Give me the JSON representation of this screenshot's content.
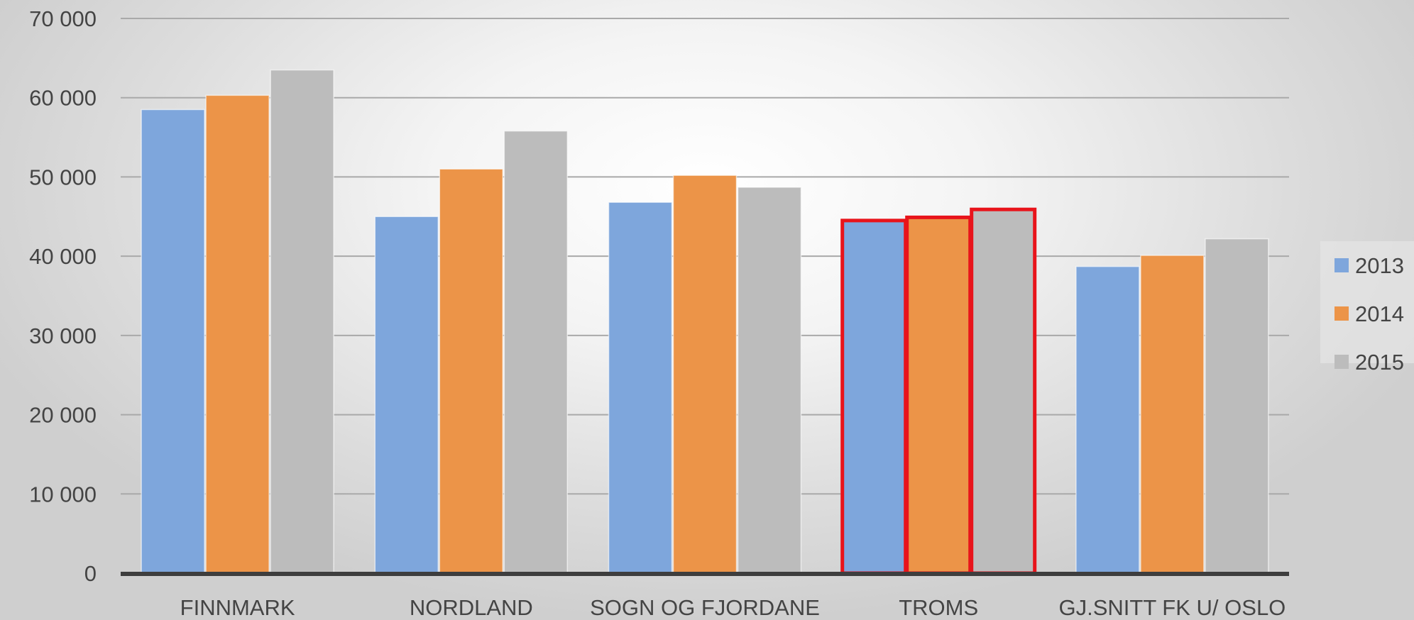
{
  "chart_data": {
    "type": "bar",
    "title": "",
    "xlabel": "",
    "ylabel": "",
    "categories": [
      "FINNMARK",
      "NORDLAND",
      "SOGN OG FJORDANE",
      "TROMS",
      "GJ.SNITT FK U/ OSLO"
    ],
    "series": [
      {
        "name": "2013",
        "color": "#7ea6dc",
        "values": [
          58500,
          45000,
          46800,
          44500,
          38700
        ]
      },
      {
        "name": "2014",
        "color": "#ec9448",
        "values": [
          60300,
          51000,
          50200,
          44900,
          40100
        ]
      },
      {
        "name": "2015",
        "color": "#bcbcbc",
        "values": [
          63500,
          55800,
          48700,
          45900,
          42200
        ]
      }
    ],
    "ylim": [
      0,
      70000
    ],
    "yticks": [
      0,
      10000,
      20000,
      30000,
      40000,
      50000,
      60000,
      70000
    ],
    "ytick_labels": [
      "0",
      "10 000",
      "20 000",
      "30 000",
      "40 000",
      "50 000",
      "60 000",
      "70 000"
    ],
    "grid": true,
    "legend_position": "right",
    "highlighted_category": "TROMS",
    "highlight_color": "#e8141b"
  }
}
